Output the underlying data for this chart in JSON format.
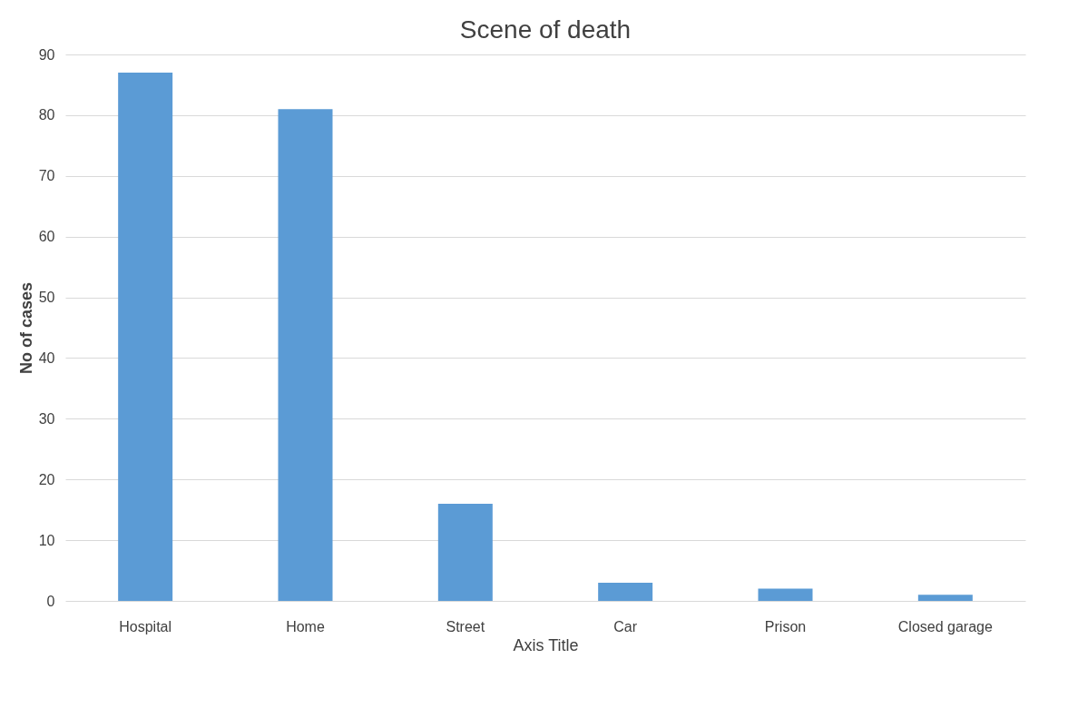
{
  "chart_data": {
    "type": "bar",
    "title": "Scene of death",
    "xlabel": "Axis Title",
    "ylabel": "No of cases",
    "categories": [
      "Hospital",
      "Home",
      "Street",
      "Car",
      "Prison",
      "Closed garage"
    ],
    "values": [
      87,
      81,
      16,
      3,
      2,
      1
    ],
    "color": "#5b9bd5",
    "ylim": [
      0,
      90
    ],
    "yticks": [
      0,
      10,
      20,
      30,
      40,
      50,
      60,
      70,
      80,
      90
    ],
    "grid": "y"
  }
}
